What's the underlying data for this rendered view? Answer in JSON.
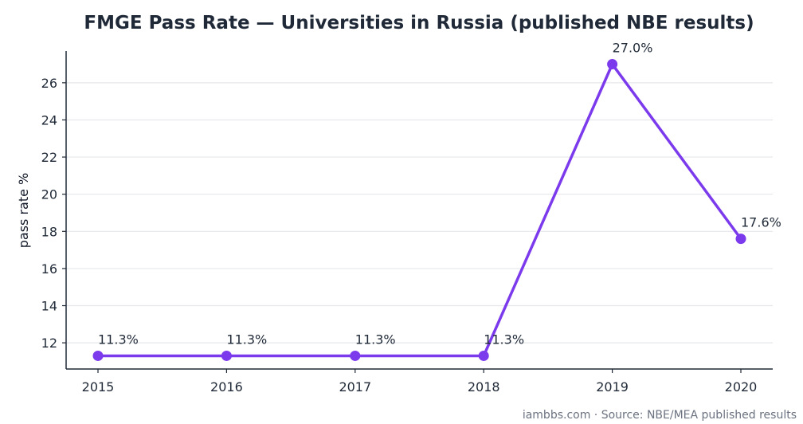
{
  "chart_data": {
    "type": "line",
    "title": "FMGE Pass Rate — Universities in Russia (published NBE results)",
    "xlabel": "",
    "ylabel": "pass rate %",
    "x": [
      "2015",
      "2016",
      "2017",
      "2018",
      "2019",
      "2020"
    ],
    "series": [
      {
        "values": [
          11.3,
          11.3,
          11.3,
          11.3,
          27.0,
          17.6
        ]
      }
    ],
    "data_labels": [
      "11.3%",
      "11.3%",
      "11.3%",
      "11.3%",
      "27.0%",
      "17.6%"
    ],
    "ylim": [
      10.59,
      27.71
    ],
    "yticks": [
      12,
      14,
      16,
      18,
      20,
      22,
      24,
      26
    ],
    "grid": "horizontal",
    "legend": "none",
    "colors": {
      "line": "#7c3aed",
      "grid": "#e5e7eb",
      "axis": "#1f2937",
      "text": "#1f2937"
    }
  },
  "source_note": "iambbs.com · Source: NBE/MEA published results"
}
